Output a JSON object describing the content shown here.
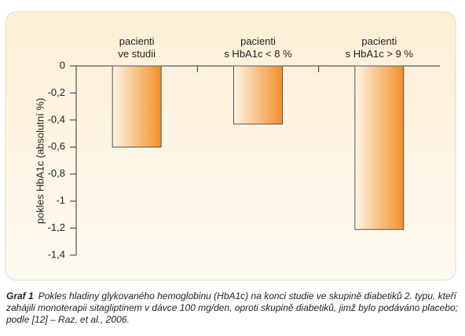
{
  "chart_data": {
    "type": "bar",
    "y_label": "pokles HbA1c (absolutní %)",
    "categories": [
      "pacienti\nve studii",
      "pacienti\ns HbA1c < 8 %",
      "pacienti\ns HbA1c > 9 %"
    ],
    "values": [
      -0.6,
      -0.43,
      -1.21
    ],
    "color": "#f0902a",
    "ylim": [
      -1.4,
      0
    ],
    "yticks": [
      0,
      {
        "value": -0.2,
        "label": "-0,2"
      },
      {
        "value": -0.4,
        "label": "-0,4"
      },
      {
        "value": -0.6,
        "label": "-0,6"
      },
      {
        "value": -0.8,
        "label": "-0,8"
      },
      -1,
      {
        "value": -1.2,
        "label": "-1,2"
      },
      {
        "value": -1.4,
        "label": "-1,4"
      }
    ]
  },
  "caption": {
    "label": "Graf 1",
    "text": "Pokles hladiny glykovaného hemoglobinu (HbA1c) na konci studie ve skupině diabetiků 2. typu, kteří zahájili monoterapii sitagliptinem v dávce 100 mg/den, oproti skupině diabetiků, jimž bylo podáváno placebo; podle [12] – Raz, et al., 2006."
  }
}
